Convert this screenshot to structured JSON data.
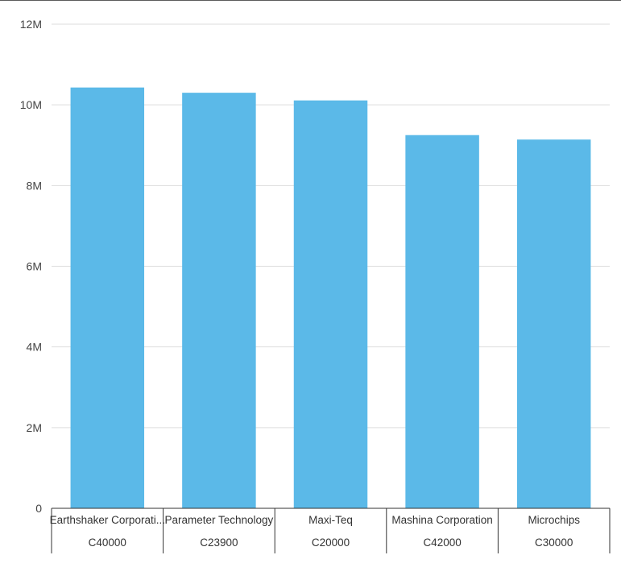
{
  "chart_data": {
    "type": "bar",
    "categories": [
      {
        "name": "Earthshaker Corporati...",
        "code": "C40000"
      },
      {
        "name": "Parameter Technology",
        "code": "C23900"
      },
      {
        "name": "Maxi-Teq",
        "code": "C20000"
      },
      {
        "name": "Mashina Corporation",
        "code": "C42000"
      },
      {
        "name": "Microchips",
        "code": "C30000"
      }
    ],
    "values": [
      10430000,
      10300000,
      10110000,
      9250000,
      9140000
    ],
    "ylim": [
      0,
      12000000
    ],
    "yticks": [
      {
        "value": 0,
        "label": "0"
      },
      {
        "value": 2000000,
        "label": "2M"
      },
      {
        "value": 4000000,
        "label": "4M"
      },
      {
        "value": 6000000,
        "label": "6M"
      },
      {
        "value": 8000000,
        "label": "8M"
      },
      {
        "value": 10000000,
        "label": "10M"
      },
      {
        "value": 12000000,
        "label": "12M"
      }
    ],
    "grid": true,
    "legend": "none",
    "bar_color": "#5BB9E8",
    "grid_color": "#DDDDDD",
    "axis_color": "#333333"
  }
}
